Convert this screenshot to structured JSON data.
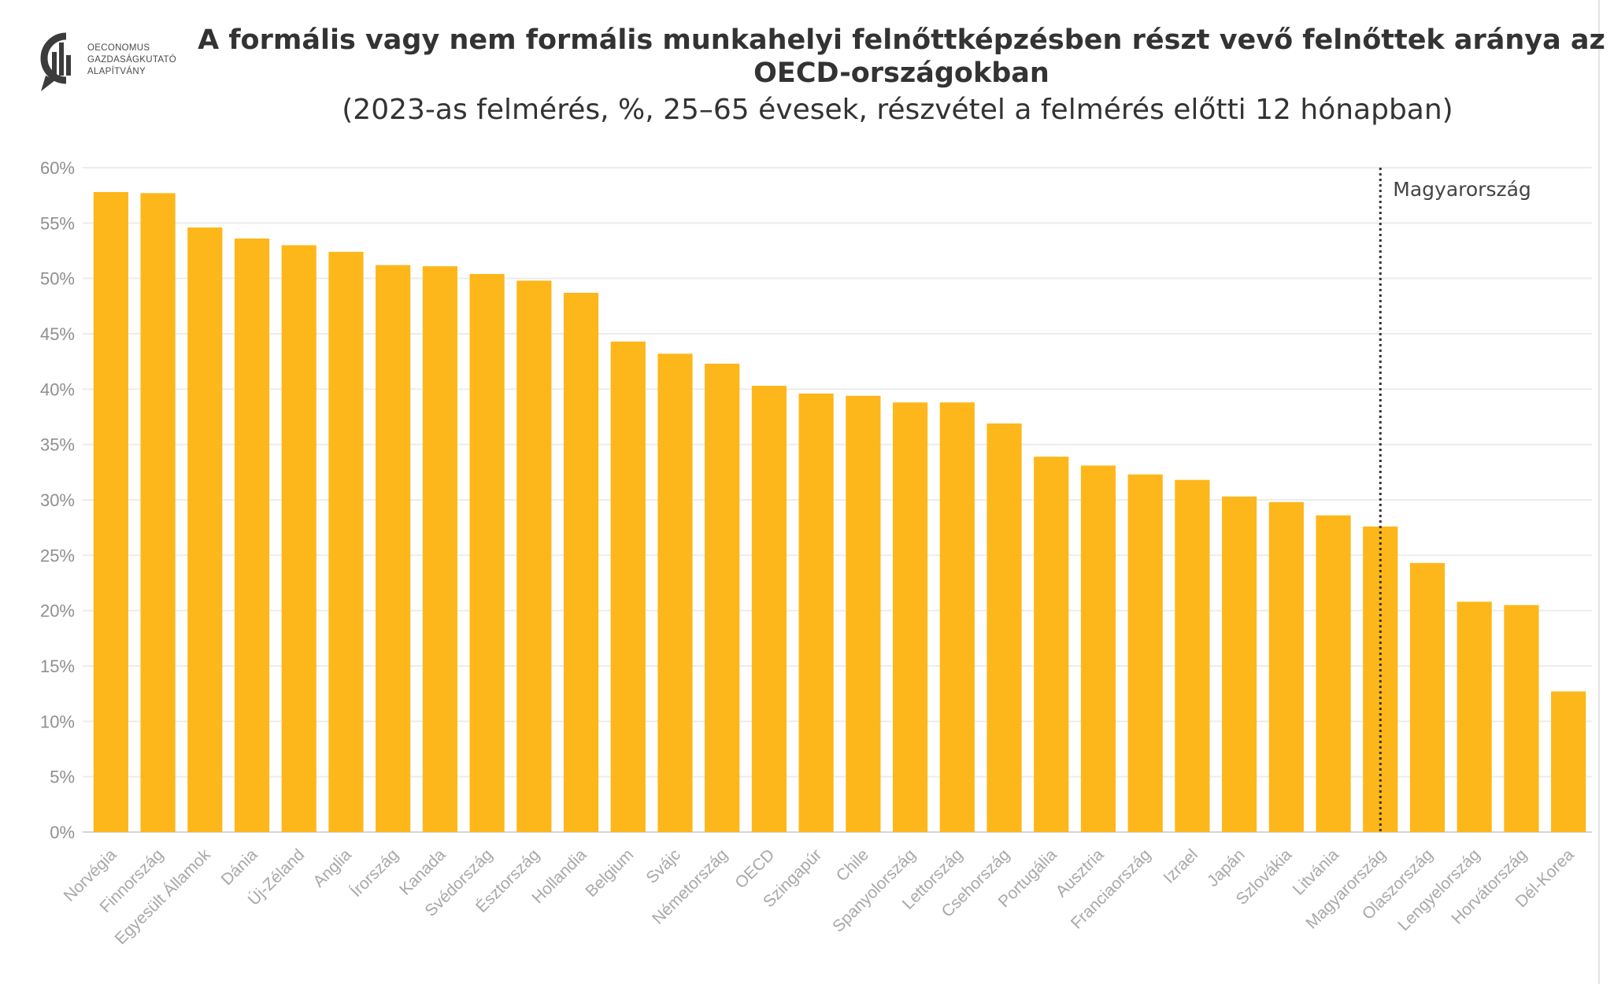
{
  "brand": {
    "lines": [
      "OECONOMUS",
      "GAZDASÁGKUTATÓ",
      "ALAPÍTVÁNY"
    ]
  },
  "chart_data": {
    "type": "bar",
    "title": "A formális vagy nem formális munkahelyi felnőttképzésben részt vevő felnőttek aránya az OECD-országokban",
    "subtitle": "(2023-as felmérés, %, 25–65 évesek, részvétel a felmérés előtti 12 hónapban)",
    "xlabel": "",
    "ylabel": "",
    "ylim": [
      0,
      60
    ],
    "y_ticks": [
      0,
      5,
      10,
      15,
      20,
      25,
      30,
      35,
      40,
      45,
      50,
      55,
      60
    ],
    "y_tick_suffix": "%",
    "grid": true,
    "bar_color": "#FDB71A",
    "categories": [
      "Norvégia",
      "Finnország",
      "Egyesült Államok",
      "Dánia",
      "Új-Zéland",
      "Anglia",
      "Írország",
      "Kanada",
      "Svédország",
      "Észtország",
      "Hollandia",
      "Belgium",
      "Svájc",
      "Németország",
      "OECD",
      "Szingapúr",
      "Chile",
      "Spanyolország",
      "Lettország",
      "Csehország",
      "Portugália",
      "Ausztria",
      "Franciaország",
      "Izrael",
      "Japán",
      "Szlovákia",
      "Litvánia",
      "Magyarország",
      "Olaszország",
      "Lengyelország",
      "Horvátország",
      "Dél-Korea"
    ],
    "values": [
      57.8,
      57.7,
      54.6,
      53.6,
      53.0,
      52.4,
      51.2,
      51.1,
      50.4,
      49.8,
      48.7,
      44.3,
      43.2,
      42.3,
      40.3,
      39.6,
      39.4,
      38.8,
      38.8,
      36.9,
      33.9,
      33.1,
      32.3,
      31.8,
      30.3,
      29.8,
      28.6,
      27.6,
      24.3,
      20.8,
      20.5,
      12.7
    ],
    "annotation": {
      "category": "Magyarország",
      "label": "Magyarország",
      "line_style": "dotted vertical"
    }
  }
}
